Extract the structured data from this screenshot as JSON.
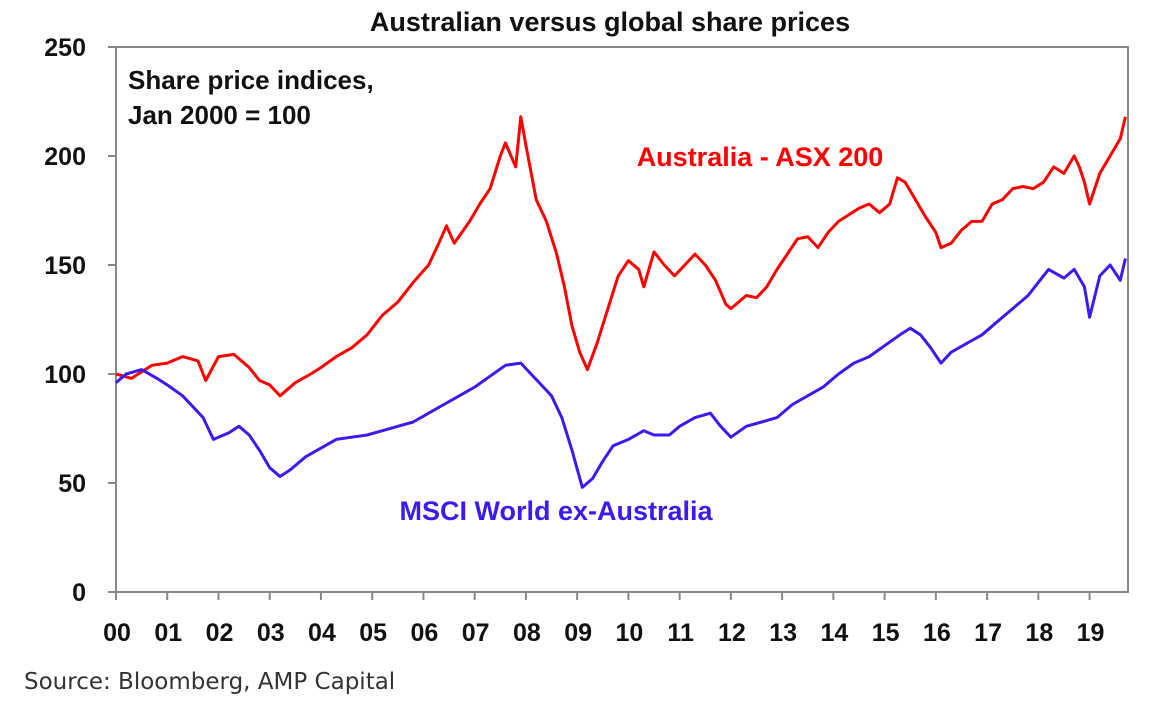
{
  "chart_data": {
    "type": "line",
    "title": "Australian versus global share prices",
    "annotation_lines": [
      "Share price indices,",
      "Jan 2000 = 100"
    ],
    "xlabel": "",
    "ylabel": "",
    "x_tick_labels": [
      "00",
      "01",
      "02",
      "03",
      "04",
      "05",
      "06",
      "07",
      "08",
      "09",
      "10",
      "11",
      "12",
      "13",
      "14",
      "15",
      "16",
      "17",
      "18",
      "19"
    ],
    "x_range": [
      2000.0,
      2019.75
    ],
    "y_ticks": [
      0,
      50,
      100,
      150,
      200,
      250
    ],
    "ylim": [
      0,
      250
    ],
    "grid": false,
    "source": "Source: Bloomberg, AMP Capital",
    "series": [
      {
        "name": "Australia - ASX 200",
        "color": "#ff0000",
        "x": [
          2000.0,
          2000.3,
          2000.7,
          2001.0,
          2001.3,
          2001.6,
          2001.75,
          2002.0,
          2002.3,
          2002.6,
          2002.8,
          2003.0,
          2003.2,
          2003.5,
          2003.8,
          2004.0,
          2004.3,
          2004.6,
          2004.9,
          2005.2,
          2005.5,
          2005.8,
          2006.1,
          2006.3,
          2006.45,
          2006.6,
          2006.9,
          2007.1,
          2007.3,
          2007.5,
          2007.6,
          2007.8,
          2007.9,
          2008.0,
          2008.2,
          2008.4,
          2008.6,
          2008.75,
          2008.9,
          2009.05,
          2009.2,
          2009.4,
          2009.6,
          2009.8,
          2010.0,
          2010.2,
          2010.3,
          2010.5,
          2010.7,
          2010.9,
          2011.1,
          2011.3,
          2011.5,
          2011.7,
          2011.9,
          2012.0,
          2012.3,
          2012.5,
          2012.7,
          2012.9,
          2013.1,
          2013.3,
          2013.5,
          2013.7,
          2013.9,
          2014.1,
          2014.3,
          2014.5,
          2014.7,
          2014.9,
          2015.1,
          2015.25,
          2015.4,
          2015.6,
          2015.8,
          2016.0,
          2016.1,
          2016.3,
          2016.5,
          2016.7,
          2016.9,
          2017.1,
          2017.3,
          2017.5,
          2017.7,
          2017.9,
          2018.1,
          2018.3,
          2018.5,
          2018.7,
          2018.8,
          2018.9,
          2019.0,
          2019.2,
          2019.4,
          2019.6,
          2019.7
        ],
        "values": [
          100,
          98,
          104,
          105,
          108,
          106,
          97,
          108,
          109,
          103,
          97,
          95,
          90,
          96,
          100,
          103,
          108,
          112,
          118,
          127,
          133,
          142,
          150,
          160,
          168,
          160,
          170,
          178,
          185,
          200,
          206,
          195,
          218,
          205,
          180,
          170,
          155,
          140,
          122,
          110,
          102,
          115,
          130,
          145,
          152,
          148,
          140,
          156,
          150,
          145,
          150,
          155,
          150,
          143,
          132,
          130,
          136,
          135,
          140,
          148,
          155,
          162,
          163,
          158,
          165,
          170,
          173,
          176,
          178,
          174,
          178,
          190,
          188,
          180,
          172,
          165,
          158,
          160,
          166,
          170,
          170,
          178,
          180,
          185,
          186,
          185,
          188,
          195,
          192,
          200,
          195,
          188,
          178,
          192,
          200,
          208,
          218
        ]
      },
      {
        "name": "MSCI World ex-Australia",
        "color": "#3a1cf0",
        "x": [
          2000.0,
          2000.2,
          2000.5,
          2000.8,
          2001.0,
          2001.3,
          2001.5,
          2001.7,
          2001.9,
          2002.2,
          2002.4,
          2002.6,
          2002.8,
          2003.0,
          2003.2,
          2003.4,
          2003.7,
          2004.0,
          2004.3,
          2004.6,
          2004.9,
          2005.2,
          2005.5,
          2005.8,
          2006.1,
          2006.4,
          2006.7,
          2007.0,
          2007.3,
          2007.6,
          2007.9,
          2008.1,
          2008.3,
          2008.5,
          2008.7,
          2008.9,
          2009.1,
          2009.3,
          2009.5,
          2009.7,
          2010.0,
          2010.3,
          2010.5,
          2010.8,
          2011.0,
          2011.3,
          2011.6,
          2011.8,
          2012.0,
          2012.3,
          2012.6,
          2012.9,
          2013.2,
          2013.5,
          2013.8,
          2014.1,
          2014.4,
          2014.7,
          2015.0,
          2015.3,
          2015.5,
          2015.7,
          2015.9,
          2016.1,
          2016.3,
          2016.6,
          2016.9,
          2017.2,
          2017.5,
          2017.8,
          2018.0,
          2018.2,
          2018.5,
          2018.7,
          2018.9,
          2019.0,
          2019.2,
          2019.4,
          2019.6,
          2019.7
        ],
        "values": [
          96,
          100,
          102,
          98,
          95,
          90,
          85,
          80,
          70,
          73,
          76,
          72,
          65,
          57,
          53,
          56,
          62,
          66,
          70,
          71,
          72,
          74,
          76,
          78,
          82,
          86,
          90,
          94,
          99,
          104,
          105,
          100,
          95,
          90,
          80,
          65,
          48,
          52,
          60,
          67,
          70,
          74,
          72,
          72,
          76,
          80,
          82,
          76,
          71,
          76,
          78,
          80,
          86,
          90,
          94,
          100,
          105,
          108,
          113,
          118,
          121,
          118,
          112,
          105,
          110,
          114,
          118,
          124,
          130,
          136,
          142,
          148,
          144,
          148,
          140,
          126,
          145,
          150,
          143,
          153
        ]
      }
    ]
  }
}
